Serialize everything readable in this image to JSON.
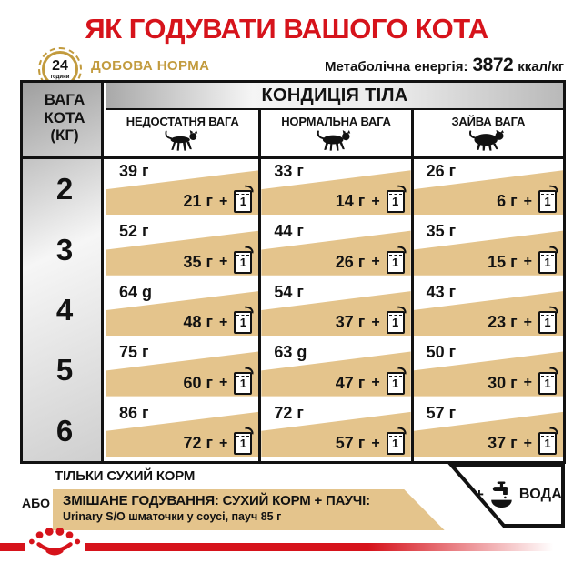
{
  "header": {
    "title": "ЯК ГОДУВАТИ ВАШОГО КОТА",
    "clock": {
      "hours": "24",
      "hours_label": "години",
      "icon": "clock-24h-icon"
    },
    "daily_norm_label": "ДОБОВА НОРМА",
    "energy_label": "Метаболічна енергія:",
    "energy_value": "3872",
    "energy_unit": "ккал/кг"
  },
  "table": {
    "weight_header_lines": [
      "ВАГА",
      "КОТА",
      "(КГ)"
    ],
    "condition_header": "КОНДИЦІЯ ТІЛА",
    "columns": [
      {
        "label": "НЕДОСТАТНЯ ВАГА",
        "icon": "thin-cat-icon"
      },
      {
        "label": "НОРМАЛЬНА ВАГА",
        "icon": "normal-cat-icon"
      },
      {
        "label": "ЗАЙВА ВАГА",
        "icon": "fat-cat-icon"
      }
    ],
    "plus_sign": "+",
    "pouch_count": "1",
    "rows": [
      {
        "weight": "2",
        "cells": [
          {
            "dry": "39 г",
            "mixed": "21 г"
          },
          {
            "dry": "33 г",
            "mixed": "14 г"
          },
          {
            "dry": "26 г",
            "mixed": "6 г"
          }
        ]
      },
      {
        "weight": "3",
        "cells": [
          {
            "dry": "52 г",
            "mixed": "35 г"
          },
          {
            "dry": "44 г",
            "mixed": "26 г"
          },
          {
            "dry": "35 г",
            "mixed": "15 г"
          }
        ]
      },
      {
        "weight": "4",
        "cells": [
          {
            "dry": "64 g",
            "mixed": "48 г"
          },
          {
            "dry": "54 г",
            "mixed": "37 г"
          },
          {
            "dry": "43 г",
            "mixed": "23 г"
          }
        ]
      },
      {
        "weight": "5",
        "cells": [
          {
            "dry": "75 г",
            "mixed": "60 г"
          },
          {
            "dry": "63 g",
            "mixed": "47 г"
          },
          {
            "dry": "50 г",
            "mixed": "30 г"
          }
        ]
      },
      {
        "weight": "6",
        "cells": [
          {
            "dry": "86 г",
            "mixed": "72 г"
          },
          {
            "dry": "72 г",
            "mixed": "57 г"
          },
          {
            "dry": "57 г",
            "mixed": "37 г"
          }
        ]
      }
    ]
  },
  "legend": {
    "dry_only": "ТІЛЬКИ СУХИЙ КОРМ",
    "or_label": "АБО",
    "mixed_title": "ЗМІШАНЕ ГОДУВАННЯ: СУХИЙ КОРМ + ПАУЧІ:",
    "mixed_subtitle": "Urinary S/O шматочки у соусі, пауч 85 г",
    "water_plus": "+",
    "water_label": "ВОДА",
    "water_icon": "water-tap-icon"
  },
  "footer": {
    "logo": "royal-canin-crown-logo"
  },
  "colors": {
    "red": "#d6131b",
    "gold": "#c29b3e",
    "tan": "#e4c48c",
    "ink": "#121212"
  }
}
